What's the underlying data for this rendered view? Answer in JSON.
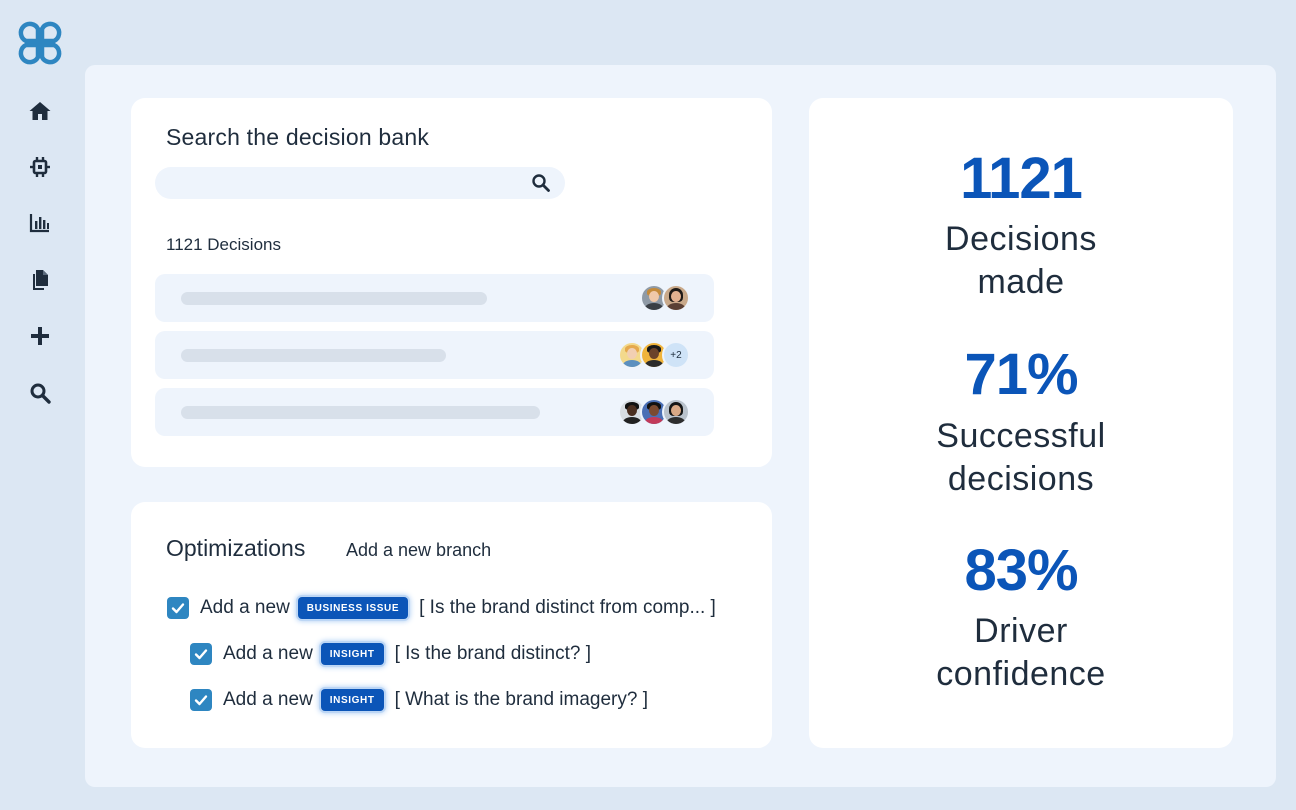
{
  "sidebar": {
    "logo_icon": "clover-logo-icon",
    "items": [
      {
        "icon": "home-icon"
      },
      {
        "icon": "chip-icon"
      },
      {
        "icon": "bar-chart-icon"
      },
      {
        "icon": "documents-icon"
      },
      {
        "icon": "plus-icon"
      },
      {
        "icon": "search-icon"
      }
    ]
  },
  "search": {
    "title": "Search the decision bank",
    "placeholder": "",
    "count_label": "1121 Decisions",
    "rows": [
      {
        "more": ""
      },
      {
        "more": "+2"
      },
      {
        "more": ""
      }
    ]
  },
  "optimizations": {
    "title": "Optimizations",
    "link": "Add a new branch",
    "items": [
      {
        "prefix": "Add a new",
        "tag": "BUSINESS ISSUE",
        "text": "[ Is the brand distinct from comp... ]",
        "checked": true
      },
      {
        "prefix": "Add a new",
        "tag": "INSIGHT",
        "text": "[ Is the brand distinct? ]",
        "checked": true
      },
      {
        "prefix": "Add a new",
        "tag": "INSIGHT",
        "text": "[ What is the brand imagery? ]",
        "checked": true
      }
    ]
  },
  "stats": [
    {
      "value": "1121",
      "label_line1": "Decisions",
      "label_line2": "made"
    },
    {
      "value": "71%",
      "label_line1": "Successful",
      "label_line2": "decisions"
    },
    {
      "value": "83%",
      "label_line1": "Driver",
      "label_line2": "confidence"
    }
  ],
  "colors": {
    "accent": "#0b55b8",
    "background": "#dce7f3",
    "panel": "#eef4fc",
    "checkbox": "#2e86c1"
  }
}
